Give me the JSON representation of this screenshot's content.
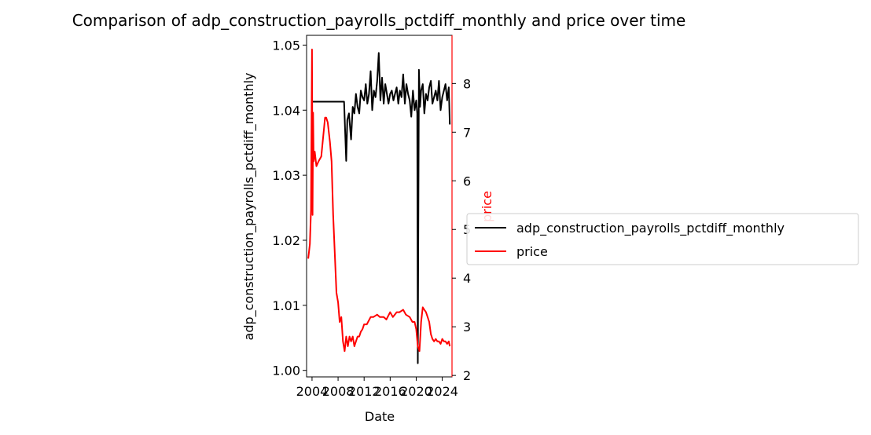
{
  "chart_data": {
    "type": "line",
    "title": "Comparison of adp_construction_payrolls_pctdiff_monthly and price over time",
    "xlabel": "Date",
    "x_ticks": [
      "2004",
      "2008",
      "2012",
      "2016",
      "2020",
      "2024"
    ],
    "x_range": [
      "2003-03-01",
      "2025-07-01"
    ],
    "y_left": {
      "label": "adp_construction_payrolls_pctdiff_monthly",
      "range": [
        0.999,
        1.0515
      ],
      "ticks": [
        "1.00",
        "1.01",
        "1.02",
        "1.03",
        "1.04",
        "1.05"
      ],
      "color": "#000000"
    },
    "y_right": {
      "label": "price",
      "range": [
        1.97,
        8.99
      ],
      "ticks": [
        "2",
        "3",
        "4",
        "5",
        "6",
        "7",
        "8"
      ],
      "color": "#ff0000"
    },
    "legend": {
      "placement": "right, outside",
      "entries": [
        "adp_construction_payrolls_pctdiff_monthly",
        "price"
      ]
    },
    "grid": false,
    "series": [
      {
        "name": "adp_construction_payrolls_pctdiff_monthly",
        "axis": "left",
        "color": "#000000",
        "x": [
          "2004-01",
          "2008-12",
          "2009-04",
          "2009-06",
          "2009-09",
          "2010-01",
          "2010-04",
          "2010-07",
          "2010-10",
          "2011-01",
          "2011-04",
          "2011-07",
          "2011-10",
          "2012-01",
          "2012-04",
          "2012-07",
          "2012-10",
          "2013-01",
          "2013-04",
          "2013-07",
          "2013-10",
          "2014-01",
          "2014-04",
          "2014-07",
          "2014-10",
          "2015-01",
          "2015-04",
          "2015-07",
          "2015-10",
          "2016-01",
          "2016-04",
          "2016-07",
          "2016-10",
          "2017-01",
          "2017-04",
          "2017-07",
          "2017-10",
          "2018-01",
          "2018-04",
          "2018-07",
          "2018-10",
          "2019-01",
          "2019-04",
          "2019-07",
          "2019-10",
          "2020-01",
          "2020-03",
          "2020-04",
          "2020-06",
          "2020-08",
          "2020-10",
          "2021-01",
          "2021-04",
          "2021-07",
          "2021-10",
          "2022-01",
          "2022-04",
          "2022-07",
          "2022-10",
          "2023-01",
          "2023-04",
          "2023-07",
          "2023-10",
          "2024-01",
          "2024-04",
          "2024-07",
          "2024-10",
          "2025-01",
          "2025-03"
        ],
        "values": [
          1.0413,
          1.0413,
          1.0322,
          1.0385,
          1.0395,
          1.0355,
          1.0405,
          1.0395,
          1.0425,
          1.0405,
          1.0395,
          1.043,
          1.042,
          1.0415,
          1.044,
          1.041,
          1.0425,
          1.046,
          1.04,
          1.043,
          1.042,
          1.0445,
          1.0488,
          1.0415,
          1.045,
          1.041,
          1.044,
          1.0425,
          1.041,
          1.0425,
          1.043,
          1.0415,
          1.0425,
          1.0435,
          1.041,
          1.043,
          1.042,
          1.0455,
          1.041,
          1.044,
          1.0425,
          1.0415,
          1.039,
          1.043,
          1.04,
          1.0415,
          1.0395,
          1.0011,
          1.0462,
          1.0405,
          1.043,
          1.044,
          1.0395,
          1.0425,
          1.0415,
          1.0435,
          1.0445,
          1.041,
          1.042,
          1.043,
          1.0415,
          1.0445,
          1.04,
          1.042,
          1.043,
          1.044,
          1.0415,
          1.0435,
          1.0378
        ]
      },
      {
        "name": "price",
        "axis": "right",
        "color": "#ff0000",
        "x": [
          "2003-06",
          "2003-09",
          "2003-11",
          "2004-01",
          "2004-02",
          "2004-03",
          "2004-04",
          "2004-06",
          "2004-09",
          "2005-01",
          "2005-06",
          "2006-01",
          "2006-03",
          "2006-06",
          "2006-10",
          "2007-01",
          "2007-04",
          "2007-07",
          "2007-10",
          "2008-01",
          "2008-04",
          "2008-07",
          "2008-10",
          "2009-01",
          "2009-04",
          "2009-07",
          "2009-10",
          "2010-01",
          "2010-04",
          "2010-07",
          "2010-10",
          "2011-01",
          "2011-04",
          "2011-07",
          "2011-10",
          "2012-01",
          "2012-06",
          "2013-01",
          "2013-06",
          "2014-01",
          "2014-06",
          "2015-01",
          "2015-06",
          "2016-01",
          "2016-06",
          "2017-01",
          "2017-06",
          "2018-01",
          "2018-06",
          "2019-01",
          "2019-06",
          "2019-10",
          "2020-01",
          "2020-04",
          "2020-07",
          "2020-10",
          "2021-01",
          "2021-04",
          "2021-07",
          "2021-10",
          "2022-01",
          "2022-04",
          "2022-07",
          "2022-10",
          "2023-01",
          "2023-04",
          "2023-07",
          "2023-10",
          "2024-01",
          "2024-04",
          "2024-07",
          "2024-10",
          "2025-01",
          "2025-03"
        ],
        "values": [
          4.4,
          4.7,
          5.4,
          8.7,
          5.3,
          7.4,
          6.4,
          6.6,
          6.3,
          6.4,
          6.5,
          7.3,
          7.3,
          7.2,
          6.8,
          6.4,
          5.3,
          4.5,
          3.7,
          3.5,
          3.1,
          3.2,
          2.7,
          2.5,
          2.8,
          2.6,
          2.8,
          2.7,
          2.8,
          2.6,
          2.7,
          2.8,
          2.8,
          2.9,
          2.95,
          3.05,
          3.05,
          3.2,
          3.2,
          3.25,
          3.2,
          3.2,
          3.15,
          3.3,
          3.2,
          3.3,
          3.3,
          3.35,
          3.25,
          3.2,
          3.1,
          3.1,
          2.95,
          2.6,
          2.5,
          3.1,
          3.4,
          3.35,
          3.3,
          3.2,
          3.1,
          2.85,
          2.75,
          2.7,
          2.75,
          2.7,
          2.7,
          2.65,
          2.75,
          2.7,
          2.7,
          2.65,
          2.7,
          2.6
        ]
      }
    ]
  }
}
